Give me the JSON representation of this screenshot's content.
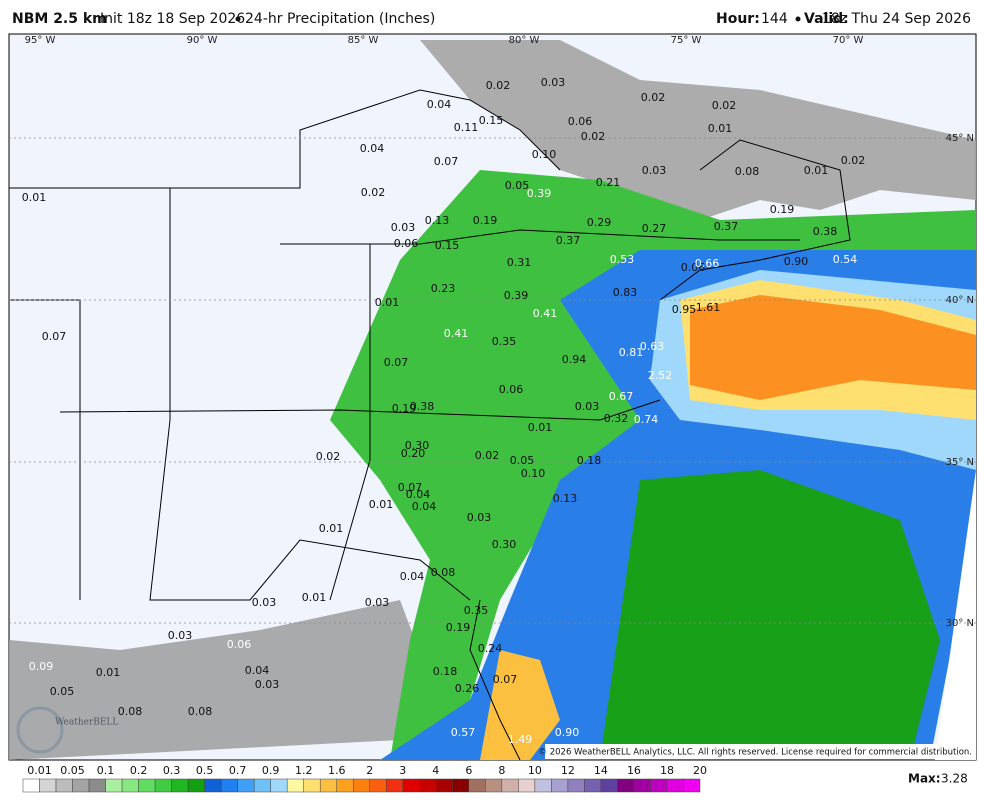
{
  "header": {
    "model": "NBM 2.5 km",
    "init": "Init 18z 18 Sep 2026",
    "product": "24-hr Precipitation (Inches)",
    "hour_label": "Hour:",
    "hour": "144",
    "valid_label": "Valid:",
    "valid": "18z Thu 24 Sep 2026"
  },
  "longitudes": [
    "95° W",
    "90° W",
    "85° W",
    "80° W",
    "75° W",
    "70° W"
  ],
  "latitudes": [
    "45° N",
    "40° N",
    "35° N",
    "30° N"
  ],
  "map_labels": [
    "0.02",
    "0.03",
    "0.02",
    "0.02",
    "0.04",
    "0.15",
    "0.11",
    "0.06",
    "0.02",
    "0.01",
    "0.04",
    "0.10",
    "0.07",
    "0.02",
    "0.03",
    "0.08",
    "0.01",
    "0.21",
    "0.05",
    "0.39",
    "0.02",
    "0.01",
    "0.19",
    "0.13",
    "0.19",
    "0.29",
    "0.03",
    "0.27",
    "0.37",
    "0.38",
    "0.37",
    "0.06",
    "0.15",
    "0.53",
    "0.31",
    "0.90",
    "0.54",
    "0.06",
    "0.66",
    "0.23",
    "0.83",
    "0.39",
    "0.01",
    "0.95",
    "1.61",
    "0.41",
    "0.41",
    "0.07",
    "0.35",
    "0.63",
    "0.94",
    "0.81",
    "0.07",
    "2.52",
    "0.06",
    "0.67",
    "0.03",
    "0.19",
    "0.38",
    "0.32",
    "0.74",
    "0.01",
    "0.30",
    "0.02",
    "0.20",
    "0.02",
    "0.05",
    "0.18",
    "0.10",
    "0.07",
    "0.04",
    "0.13",
    "0.01",
    "0.04",
    "0.03",
    "0.01",
    "0.30",
    "0.04",
    "0.08",
    "0.03",
    "0.01",
    "0.03",
    "0.35",
    "0.19",
    "0.03",
    "0.06",
    "0.24",
    "0.09",
    "0.01",
    "0.04",
    "0.18",
    "0.03",
    "0.07",
    "0.26",
    "0.05",
    "0.08",
    "0.08",
    "0.57",
    "1.49",
    "0.90"
  ],
  "copyright": "© 2026 WeatherBELL Analytics, LLC. All rights reserved. License required for commercial distribution.",
  "logo": "WeatherBELL",
  "colorbar": {
    "labels": [
      "0.01",
      "0.05",
      "0.1",
      "0.2",
      "0.3",
      "0.5",
      "0.7",
      "0.9",
      "1.2",
      "1.6",
      "2",
      "3",
      "4",
      "6",
      "8",
      "10",
      "12",
      "14",
      "16",
      "18",
      "20"
    ],
    "colors": [
      "#ffffff",
      "#d4d4d4",
      "#bcbcbc",
      "#a4a4a4",
      "#8c8c8c",
      "#a8f0a0",
      "#88e880",
      "#60dc60",
      "#40cc40",
      "#20b820",
      "#10a010",
      "#1060d8",
      "#2080f0",
      "#40a0f8",
      "#70c0f8",
      "#a0d8fc",
      "#fff8a0",
      "#fde070",
      "#fcc040",
      "#fca020",
      "#fc8010",
      "#f86010",
      "#f03010",
      "#e00000",
      "#c80000",
      "#a80000",
      "#880000",
      "#a07060",
      "#b89080",
      "#d0b0a8",
      "#e8d0d0",
      "#c0c0e0",
      "#a8a0d0",
      "#9080c0",
      "#7860b0",
      "#6040a0",
      "#800080",
      "#a000a0",
      "#c000c0",
      "#e000e0",
      "#f000f0"
    ]
  },
  "max_label": "Max:",
  "max_value": "3.28"
}
